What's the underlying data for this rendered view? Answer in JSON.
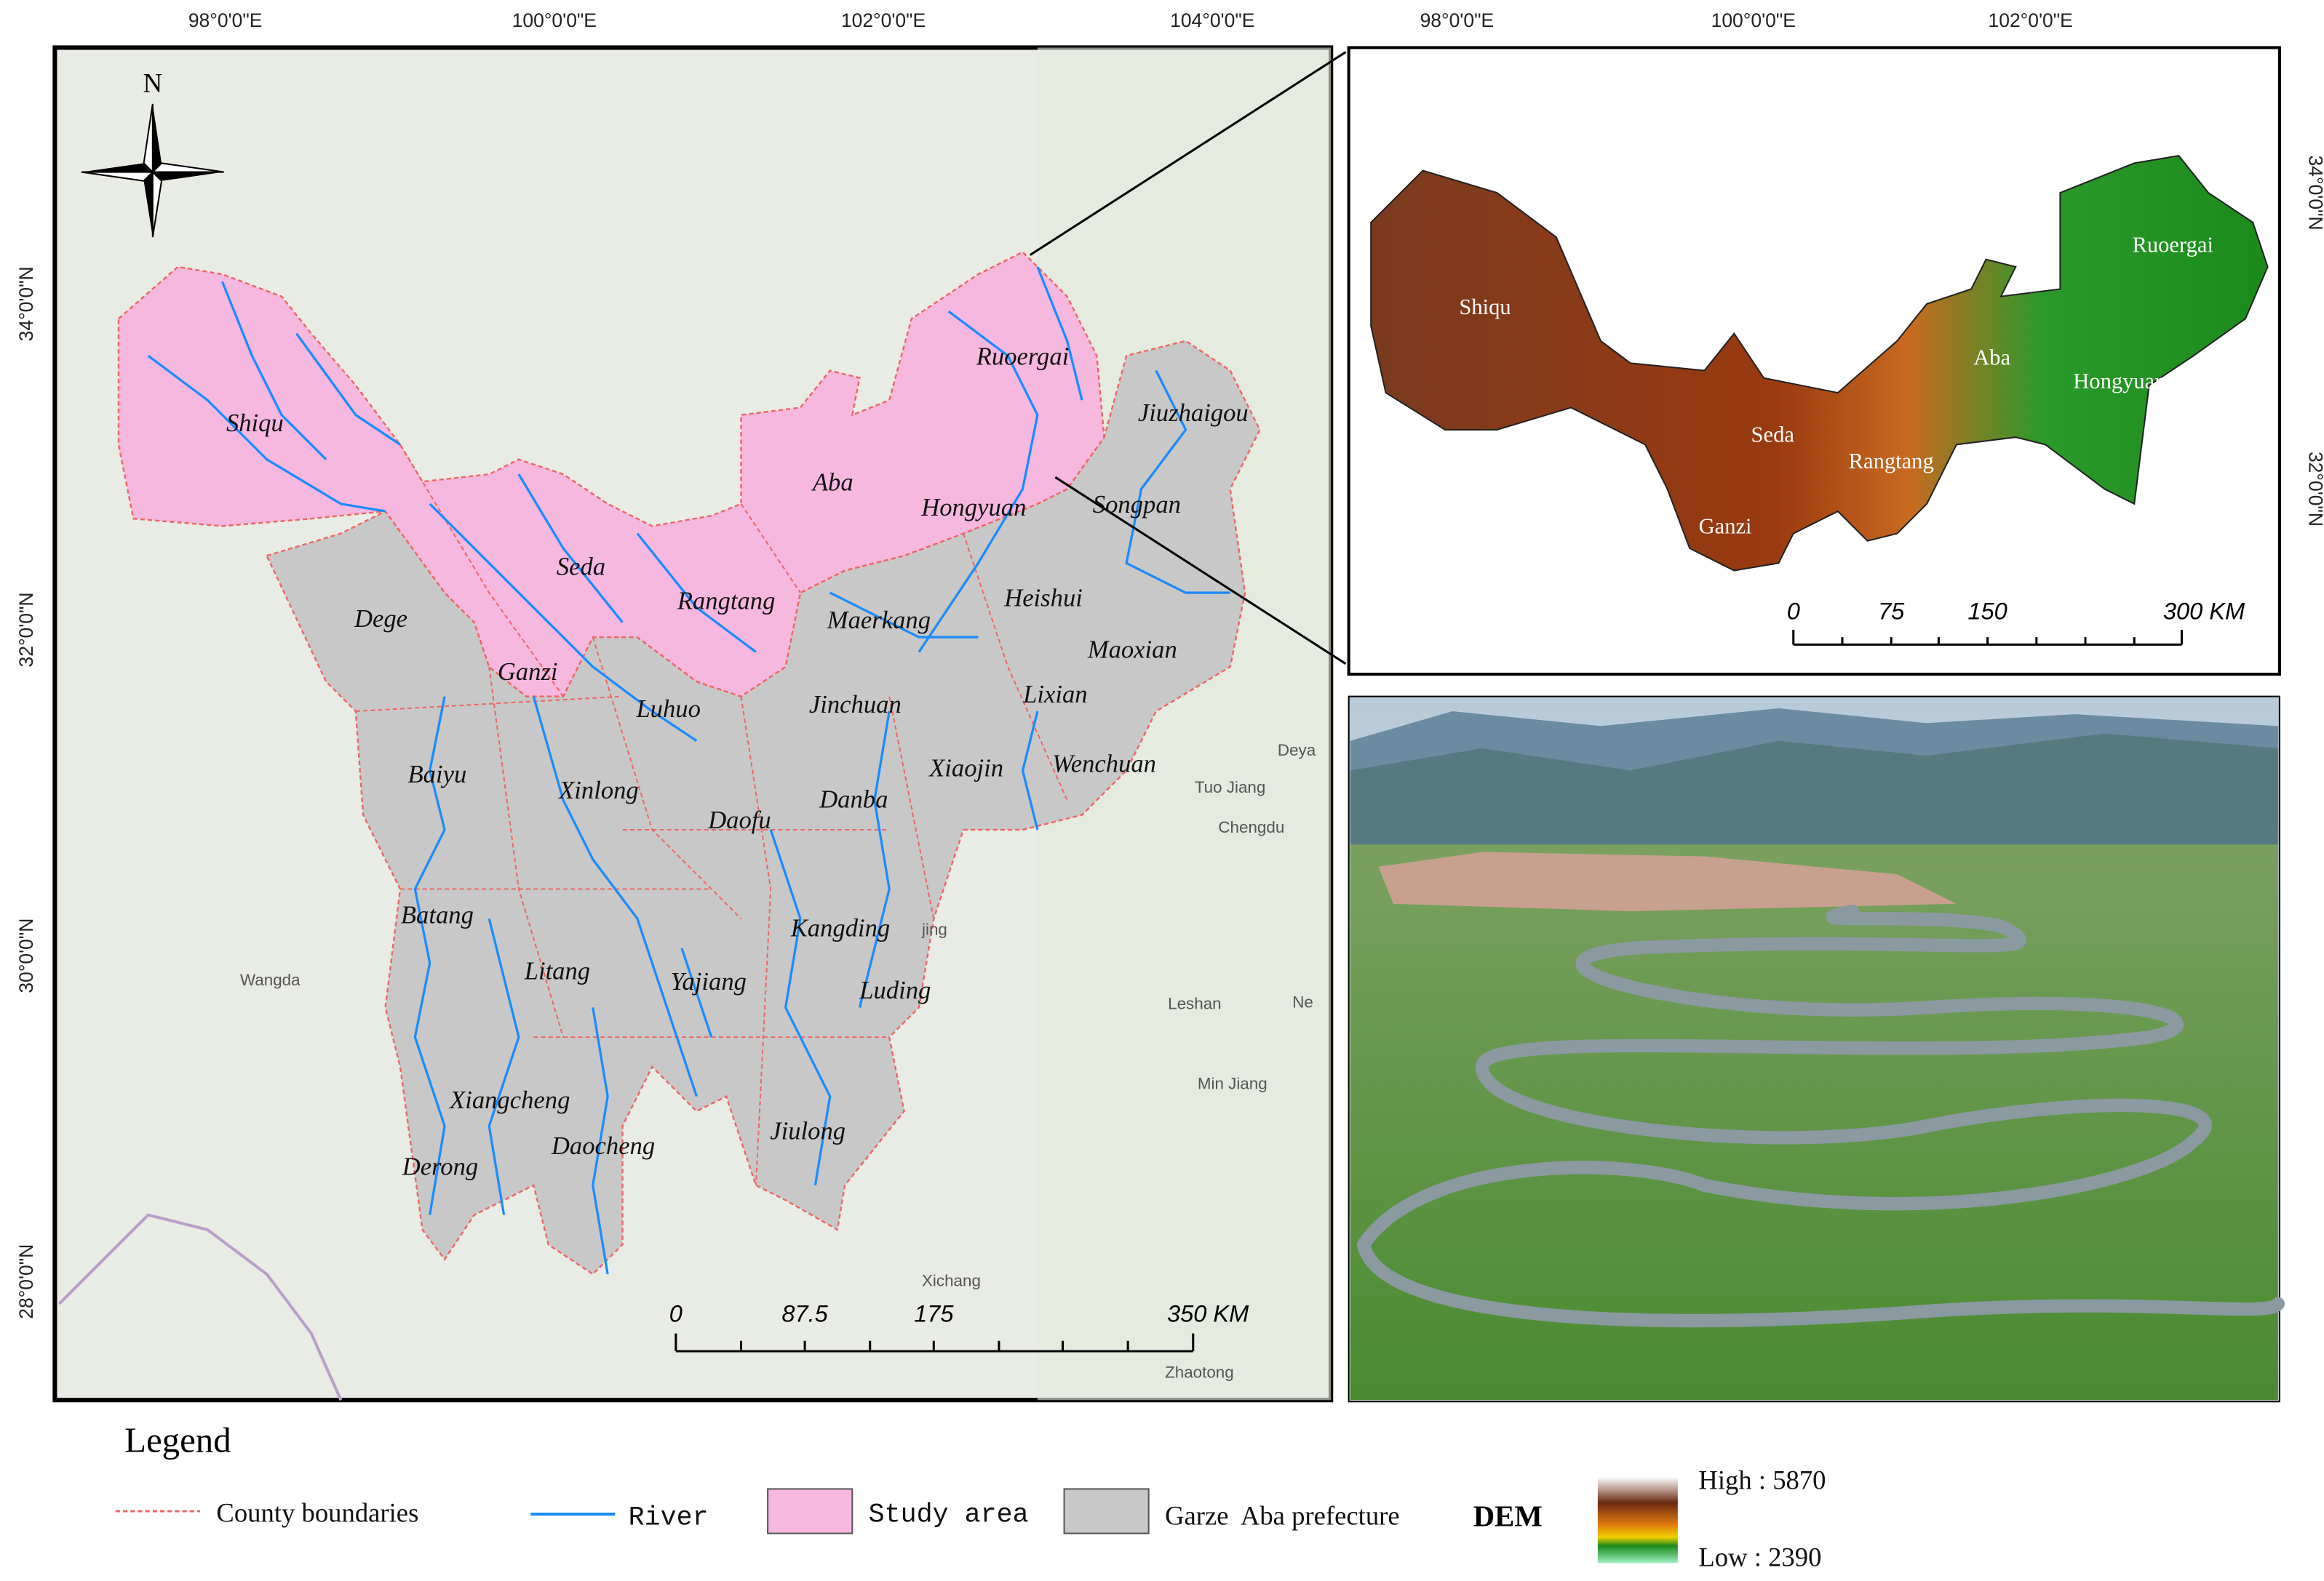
{
  "main_map": {
    "lon_ticks": [
      "98°0'0\"E",
      "100°0'0\"E",
      "102°0'0\"E",
      "104°0'0\"E"
    ],
    "lat_ticks": [
      "34°0'0\"N",
      "32°0'0\"N",
      "30°0'0\"N",
      "28°0'0\"N"
    ],
    "north": "N",
    "counties": [
      "Shiqu",
      "Ruoergai",
      "Jiuzhaigou",
      "Aba",
      "Hongyuan",
      "Songpan",
      "Seda",
      "Rangtang",
      "Dege",
      "Maerkang",
      "Heishui",
      "Maoxian",
      "Ganzi",
      "Luhuo",
      "Jinchuan",
      "Lixian",
      "Baiyu",
      "Xinlong",
      "Daofu",
      "Danba",
      "Xiaojin",
      "Wenchuan",
      "Batang",
      "Kangding",
      "Litang",
      "Yajiang",
      "Luding",
      "Xiangcheng",
      "Jiulong",
      "Daocheng",
      "Derong"
    ],
    "basemap_labels": [
      "Deya",
      "Tuo Jiang",
      "Chengdu",
      "Wangda",
      "Leshan",
      "Ne",
      "Min Jiang",
      "Xichang",
      "Zhaotong",
      "jing"
    ],
    "scale_bar": [
      "0",
      "87.5",
      "175",
      "350 KM"
    ]
  },
  "inset_map": {
    "lon_ticks": [
      "98°0'0\"E",
      "100°0'0\"E",
      "102°0'0\"E"
    ],
    "lat_ticks": [
      "34°0'0\"N",
      "32°0'0\"N"
    ],
    "counties": [
      "Shiqu",
      "Seda",
      "Ganzi",
      "Rangtang",
      "Aba",
      "Hongyuan",
      "Ruoergai"
    ],
    "scale_bar": [
      "0",
      "75",
      "150",
      "300 KM"
    ]
  },
  "legend": {
    "title": "Legend",
    "items": [
      "County boundaries",
      "River",
      "Study area",
      "Garze  Aba prefecture"
    ],
    "dem_title": "DEM",
    "dem_high": "High : 5870",
    "dem_low": "Low : 2390"
  }
}
